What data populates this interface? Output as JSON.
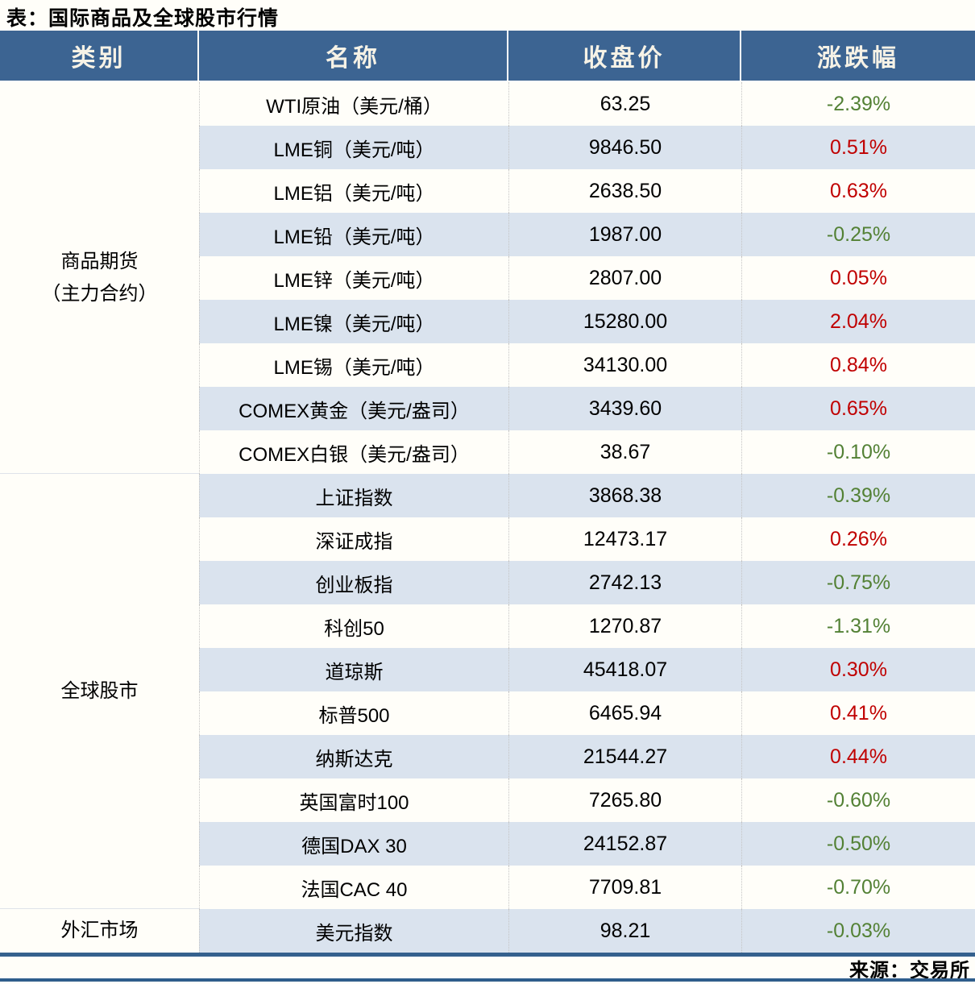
{
  "title": "表：国际商品及全球股市行情",
  "source": "来源：交易所",
  "colors": {
    "header_bg": "#3c6492",
    "header_text": "#f6f2e6",
    "stripe": "#dae3ee",
    "up_red": "#c00000",
    "down_green": "#538135",
    "bottom_rule": "#35618e"
  },
  "chart_data": {
    "type": "table",
    "columns": [
      "类别",
      "名称",
      "收盘价",
      "涨跌幅"
    ],
    "sections": [
      {
        "category_lines": [
          "商品期货",
          "（主力合约）"
        ],
        "rows": [
          {
            "name": "WTI原油（美元/桶）",
            "close": "63.25",
            "change": "-2.39%",
            "dir": "down"
          },
          {
            "name": "LME铜（美元/吨）",
            "close": "9846.50",
            "change": "0.51%",
            "dir": "up"
          },
          {
            "name": "LME铝（美元/吨）",
            "close": "2638.50",
            "change": "0.63%",
            "dir": "up"
          },
          {
            "name": "LME铅（美元/吨）",
            "close": "1987.00",
            "change": "-0.25%",
            "dir": "down"
          },
          {
            "name": "LME锌（美元/吨）",
            "close": "2807.00",
            "change": "0.05%",
            "dir": "up"
          },
          {
            "name": "LME镍（美元/吨）",
            "close": "15280.00",
            "change": "2.04%",
            "dir": "up"
          },
          {
            "name": "LME锡（美元/吨）",
            "close": "34130.00",
            "change": "0.84%",
            "dir": "up"
          },
          {
            "name": "COMEX黄金（美元/盎司）",
            "close": "3439.60",
            "change": "0.65%",
            "dir": "up"
          },
          {
            "name": "COMEX白银（美元/盎司）",
            "close": "38.67",
            "change": "-0.10%",
            "dir": "down"
          }
        ]
      },
      {
        "category_lines": [
          "全球股市"
        ],
        "rows": [
          {
            "name": "上证指数",
            "close": "3868.38",
            "change": "-0.39%",
            "dir": "down"
          },
          {
            "name": "深证成指",
            "close": "12473.17",
            "change": "0.26%",
            "dir": "up"
          },
          {
            "name": "创业板指",
            "close": "2742.13",
            "change": "-0.75%",
            "dir": "down"
          },
          {
            "name": "科创50",
            "close": "1270.87",
            "change": "-1.31%",
            "dir": "down"
          },
          {
            "name": "道琼斯",
            "close": "45418.07",
            "change": "0.30%",
            "dir": "up"
          },
          {
            "name": "标普500",
            "close": "6465.94",
            "change": "0.41%",
            "dir": "up"
          },
          {
            "name": "纳斯达克",
            "close": "21544.27",
            "change": "0.44%",
            "dir": "up"
          },
          {
            "name": "英国富时100",
            "close": "7265.80",
            "change": "-0.60%",
            "dir": "down"
          },
          {
            "name": "德国DAX 30",
            "close": "24152.87",
            "change": "-0.50%",
            "dir": "down"
          },
          {
            "name": "法国CAC 40",
            "close": "7709.81",
            "change": "-0.70%",
            "dir": "down"
          }
        ]
      },
      {
        "category_lines": [
          "外汇市场"
        ],
        "rows": [
          {
            "name": "美元指数",
            "close": "98.21",
            "change": "-0.03%",
            "dir": "down"
          }
        ]
      }
    ]
  }
}
